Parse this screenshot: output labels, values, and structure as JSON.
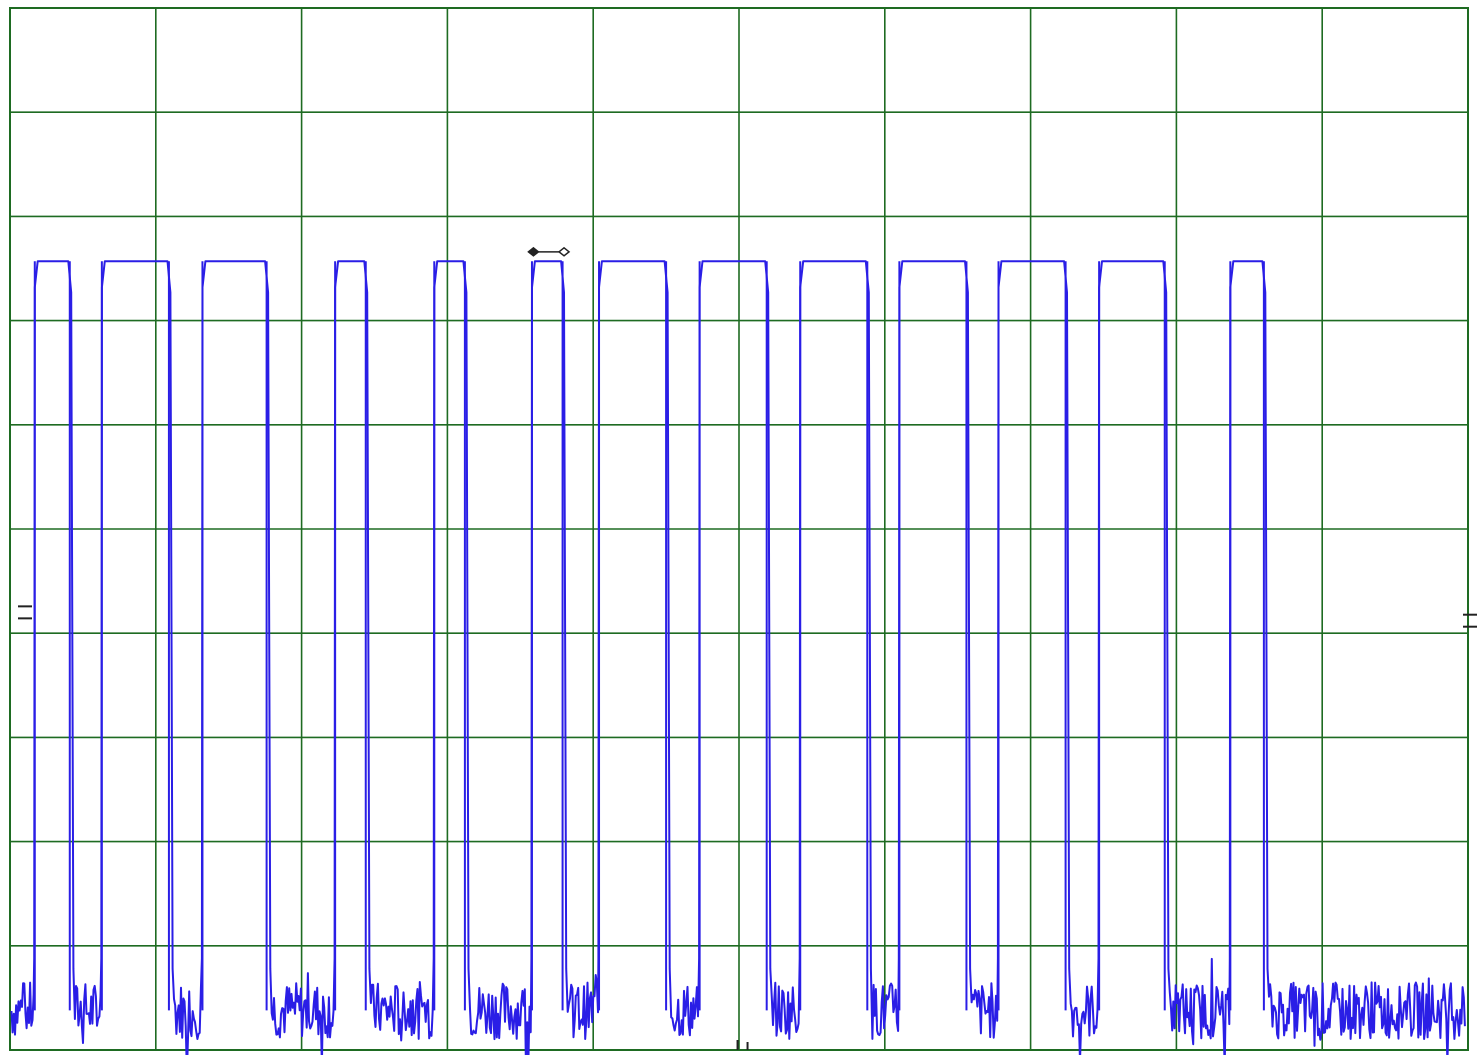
{
  "chart_data": {
    "type": "line",
    "title": "",
    "xlabel": "",
    "ylabel": "",
    "xlim": [
      0,
      10
    ],
    "ylim": [
      -4,
      6
    ],
    "grid": true,
    "grid_divisions": {
      "x": 10,
      "y": 10
    },
    "colors": {
      "grid": "#1e6b22",
      "trace": "#2a1ee6",
      "marker": "#222222",
      "background": "#ffffff"
    },
    "series": [
      {
        "high_level": 3.57,
        "low_level": -3.62,
        "pulses": [
          {
            "rise": 0.17,
            "fall": 0.41
          },
          {
            "rise": 0.63,
            "fall": 1.09
          },
          {
            "rise": 1.32,
            "fall": 1.76
          },
          {
            "rise": 2.23,
            "fall": 2.44
          },
          {
            "rise": 2.91,
            "fall": 3.12
          },
          {
            "rise": 3.58,
            "fall": 3.79
          },
          {
            "rise": 4.04,
            "fall": 4.5
          },
          {
            "rise": 4.73,
            "fall": 5.19
          },
          {
            "rise": 5.42,
            "fall": 5.88
          },
          {
            "rise": 6.1,
            "fall": 6.56
          },
          {
            "rise": 6.78,
            "fall": 7.24
          },
          {
            "rise": 7.47,
            "fall": 7.92
          },
          {
            "rise": 8.37,
            "fall": 8.6
          }
        ]
      }
    ],
    "cursor_markers": [
      {
        "x": 3.59,
        "y": 3.66,
        "style": "filled"
      },
      {
        "x": 3.8,
        "y": 3.66,
        "style": "open"
      }
    ],
    "level_markers": [
      {
        "side": "left",
        "y": 0.2
      },
      {
        "side": "right",
        "y": 0.12
      }
    ],
    "trigger_marker": {
      "x": 4.99
    }
  }
}
